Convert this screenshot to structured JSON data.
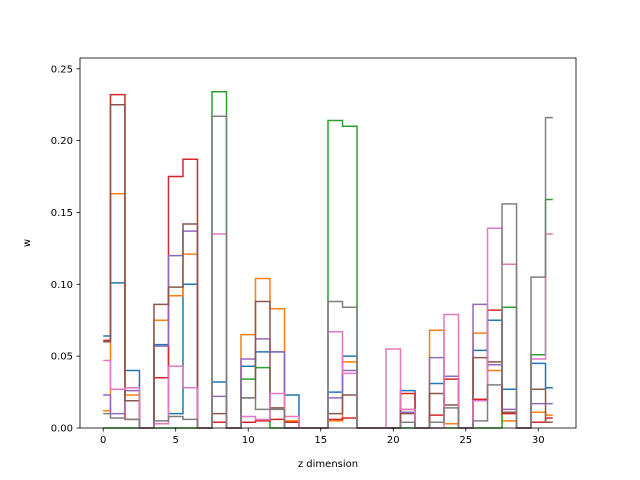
{
  "chart_data": {
    "type": "line",
    "style": "step",
    "xlabel": "z dimension",
    "ylabel": "w",
    "xlim": [
      -1.6,
      32.6
    ],
    "ylim": [
      0.0,
      0.2575
    ],
    "xticks": [
      0,
      5,
      10,
      15,
      20,
      25,
      30
    ],
    "yticks": [
      0.0,
      0.05,
      0.1,
      0.15,
      0.2,
      0.25
    ],
    "ytick_labels": [
      "0.00",
      "0.05",
      "0.10",
      "0.15",
      "0.20",
      "0.25"
    ],
    "grid": false,
    "x": [
      0,
      1,
      2,
      3,
      4,
      5,
      6,
      7,
      8,
      9,
      10,
      11,
      12,
      13,
      14,
      15,
      16,
      17,
      18,
      19,
      20,
      21,
      22,
      23,
      24,
      25,
      26,
      27,
      28,
      29,
      30,
      31
    ],
    "series": [
      {
        "color": "#1f77b4",
        "values": [
          0.064,
          0.101,
          0.04,
          0.0,
          0.058,
          0.01,
          0.1,
          0.0,
          0.032,
          0.0,
          0.043,
          0.053,
          0.053,
          0.023,
          0.0,
          0.0,
          0.025,
          0.05,
          0.0,
          0.0,
          0.0,
          0.026,
          0.0,
          0.031,
          0.036,
          0.0,
          0.054,
          0.075,
          0.027,
          0.0,
          0.045,
          0.028
        ]
      },
      {
        "color": "#ff7f0e",
        "values": [
          0.012,
          0.163,
          0.023,
          0.0,
          0.075,
          0.092,
          0.121,
          0.0,
          0.004,
          0.0,
          0.065,
          0.104,
          0.083,
          0.005,
          0.0,
          0.0,
          0.005,
          0.046,
          0.0,
          0.0,
          0.0,
          0.013,
          0.0,
          0.068,
          0.003,
          0.0,
          0.066,
          0.04,
          0.005,
          0.0,
          0.011,
          0.009
        ]
      },
      {
        "color": "#2ca02c",
        "values": [
          0.0,
          0.0,
          0.0,
          0.0,
          0.0,
          0.0,
          0.0,
          0.0,
          0.234,
          0.0,
          0.034,
          0.042,
          0.0,
          0.0,
          0.0,
          0.0,
          0.214,
          0.21,
          0.0,
          0.0,
          0.0,
          0.0,
          0.0,
          0.0,
          0.0,
          0.0,
          0.0,
          0.0,
          0.084,
          0.0,
          0.051,
          0.159
        ]
      },
      {
        "color": "#d62728",
        "values": [
          0.061,
          0.232,
          0.006,
          0.0,
          0.035,
          0.175,
          0.187,
          0.0,
          0.004,
          0.0,
          0.004,
          0.005,
          0.006,
          0.004,
          0.0,
          0.0,
          0.006,
          0.007,
          0.0,
          0.0,
          0.0,
          0.024,
          0.0,
          0.009,
          0.034,
          0.0,
          0.02,
          0.082,
          0.01,
          0.0,
          0.004,
          0.007
        ]
      },
      {
        "color": "#9467bd",
        "values": [
          0.023,
          0.01,
          0.026,
          0.0,
          0.057,
          0.12,
          0.137,
          0.0,
          0.022,
          0.0,
          0.048,
          0.062,
          0.053,
          0.0,
          0.0,
          0.0,
          0.021,
          0.04,
          0.0,
          0.0,
          0.0,
          0.011,
          0.0,
          0.049,
          0.036,
          0.0,
          0.086,
          0.044,
          0.013,
          0.0,
          0.017,
          0.017
        ]
      },
      {
        "color": "#8c564b",
        "values": [
          0.06,
          0.225,
          0.019,
          0.0,
          0.086,
          0.098,
          0.142,
          0.0,
          0.01,
          0.0,
          0.021,
          0.088,
          0.014,
          0.0,
          0.0,
          0.0,
          0.01,
          0.023,
          0.0,
          0.0,
          0.0,
          0.01,
          0.0,
          0.024,
          0.016,
          0.0,
          0.049,
          0.046,
          0.011,
          0.0,
          0.027,
          0.004
        ]
      },
      {
        "color": "#e377c2",
        "values": [
          0.047,
          0.027,
          0.028,
          0.0,
          0.003,
          0.043,
          0.028,
          0.0,
          0.135,
          0.0,
          0.008,
          0.006,
          0.024,
          0.008,
          0.0,
          0.0,
          0.067,
          0.038,
          0.0,
          0.0,
          0.055,
          0.013,
          0.0,
          0.0,
          0.079,
          0.0,
          0.019,
          0.139,
          0.114,
          0.0,
          0.048,
          0.135
        ]
      },
      {
        "color": "#7f7f7f",
        "values": [
          0.01,
          0.007,
          0.006,
          0.0,
          0.005,
          0.008,
          0.006,
          0.0,
          0.217,
          0.0,
          0.021,
          0.013,
          0.013,
          0.0,
          0.0,
          0.0,
          0.088,
          0.084,
          0.0,
          0.0,
          0.0,
          0.004,
          0.0,
          0.004,
          0.014,
          0.0,
          0.005,
          0.03,
          0.156,
          0.0,
          0.105,
          0.216
        ]
      }
    ]
  }
}
